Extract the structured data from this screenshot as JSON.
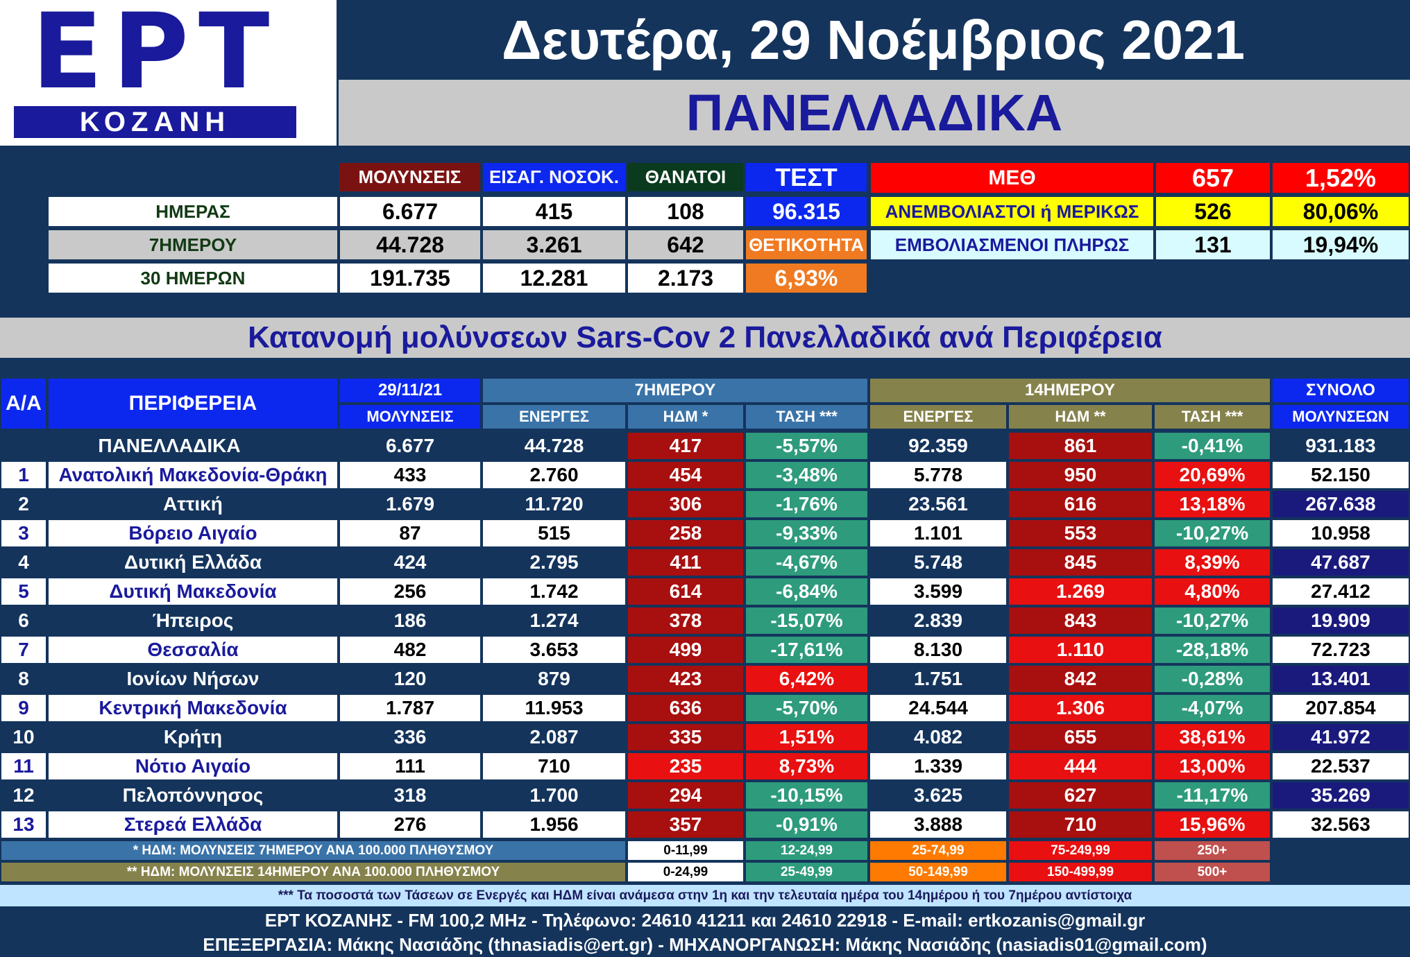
{
  "header": {
    "logo_main": "ΕΡΤ",
    "logo_sub": "ΚΟΖΑΝΗ",
    "date": "Δευτέρα, 29 Νοέμβριος 2021",
    "title": "ΠΑΝΕΛΛΑΔΙΚΑ"
  },
  "summary": {
    "col_infections": "ΜΟΛΥΝΣΕΙΣ",
    "col_hospital": "ΕΙΣΑΓ. ΝΟΣΟΚ.",
    "col_deaths": "ΘΑΝΑΤΟΙ",
    "col_tests": "ΤΕΣΤ",
    "rows": [
      {
        "label": "ΗΜΕΡΑΣ",
        "infections": "6.677",
        "hospital": "415",
        "deaths": "108"
      },
      {
        "label": "7ΗΜΕΡΟΥ",
        "infections": "44.728",
        "hospital": "3.261",
        "deaths": "642"
      },
      {
        "label": "30 ΗΜΕΡΩΝ",
        "infections": "191.735",
        "hospital": "12.281",
        "deaths": "2.173"
      }
    ],
    "tests_value": "96.315",
    "positivity_label": "ΘΕΤΙΚΟΤΗΤΑ",
    "positivity_value": "6,93%",
    "icu": {
      "label": "ΜΕΘ",
      "value": "657",
      "pct": "1,52%",
      "unvaccinated_label": "ΑΝΕΜΒΟΛΙΑΣΤΟΙ ή ΜΕΡΙΚΩΣ",
      "unvaccinated_value": "526",
      "unvaccinated_pct": "80,06%",
      "vaccinated_label": "ΕΜΒΟΛΙΑΣΜΕΝΟΙ ΠΛΗΡΩΣ",
      "vaccinated_value": "131",
      "vaccinated_pct": "19,94%"
    }
  },
  "section_title": "Κατανομή μολύνσεων Sars-Cov 2 Πανελλαδικά ανά Περιφέρεια",
  "table": {
    "h_aa": "Α/Α",
    "h_region": "ΠΕΡΙΦΕΡΕΙΑ",
    "h_date": "29/11/21",
    "h_7day": "7ΗΜΕΡΟΥ",
    "h_14day": "14ΗΜΕΡΟΥ",
    "h_total": "ΣΥΝΟΛΟ",
    "sh_infections": "ΜΟΛΥΝΣΕΙΣ",
    "sh_active7": "ΕΝΕΡΓΕΣ",
    "sh_idm7": "ΗΔΜ *",
    "sh_trend7": "ΤΑΣΗ ***",
    "sh_active14": "ΕΝΕΡΓΕΣ",
    "sh_idm14": "ΗΔΜ **",
    "sh_trend14": "ΤΑΣΗ ***",
    "sh_total": "ΜΟΛΥΝΣΕΩΝ",
    "national": {
      "name": "ΠΑΝΕΛΛΑΔΙΚΑ",
      "inf": "6.677",
      "act7": "44.728",
      "idm7": "417",
      "tr7": "-5,57%",
      "act14": "92.359",
      "idm14": "861",
      "tr14": "-0,41%",
      "total": "931.183"
    },
    "rows": [
      {
        "aa": "1",
        "name": "Ανατολική Μακεδονία-Θράκη",
        "inf": "433",
        "act7": "2.760",
        "idm7": "454",
        "tr7": "-3,48%",
        "act14": "5.778",
        "idm14": "950",
        "tr14": "20,69%",
        "total": "52.150"
      },
      {
        "aa": "2",
        "name": "Αττική",
        "inf": "1.679",
        "act7": "11.720",
        "idm7": "306",
        "tr7": "-1,76%",
        "act14": "23.561",
        "idm14": "616",
        "tr14": "13,18%",
        "total": "267.638"
      },
      {
        "aa": "3",
        "name": "Βόρειο Αιγαίο",
        "inf": "87",
        "act7": "515",
        "idm7": "258",
        "tr7": "-9,33%",
        "act14": "1.101",
        "idm14": "553",
        "tr14": "-10,27%",
        "total": "10.958"
      },
      {
        "aa": "4",
        "name": "Δυτική Ελλάδα",
        "inf": "424",
        "act7": "2.795",
        "idm7": "411",
        "tr7": "-4,67%",
        "act14": "5.748",
        "idm14": "845",
        "tr14": "8,39%",
        "total": "47.687"
      },
      {
        "aa": "5",
        "name": "Δυτική Μακεδονία",
        "inf": "256",
        "act7": "1.742",
        "idm7": "614",
        "tr7": "-6,84%",
        "act14": "3.599",
        "idm14": "1.269",
        "tr14": "4,80%",
        "total": "27.412"
      },
      {
        "aa": "6",
        "name": "Ήπειρος",
        "inf": "186",
        "act7": "1.274",
        "idm7": "378",
        "tr7": "-15,07%",
        "act14": "2.839",
        "idm14": "843",
        "tr14": "-10,27%",
        "total": "19.909"
      },
      {
        "aa": "7",
        "name": "Θεσσαλία",
        "inf": "482",
        "act7": "3.653",
        "idm7": "499",
        "tr7": "-17,61%",
        "act14": "8.130",
        "idm14": "1.110",
        "tr14": "-28,18%",
        "total": "72.723"
      },
      {
        "aa": "8",
        "name": "Ιονίων Νήσων",
        "inf": "120",
        "act7": "879",
        "idm7": "423",
        "tr7": "6,42%",
        "act14": "1.751",
        "idm14": "842",
        "tr14": "-0,28%",
        "total": "13.401"
      },
      {
        "aa": "9",
        "name": "Κεντρική Μακεδονία",
        "inf": "1.787",
        "act7": "11.953",
        "idm7": "636",
        "tr7": "-5,70%",
        "act14": "24.544",
        "idm14": "1.306",
        "tr14": "-4,07%",
        "total": "207.854"
      },
      {
        "aa": "10",
        "name": "Κρήτη",
        "inf": "336",
        "act7": "2.087",
        "idm7": "335",
        "tr7": "1,51%",
        "act14": "4.082",
        "idm14": "655",
        "tr14": "38,61%",
        "total": "41.972"
      },
      {
        "aa": "11",
        "name": "Νότιο Αιγαίο",
        "inf": "111",
        "act7": "710",
        "idm7": "235",
        "tr7": "8,73%",
        "act14": "1.339",
        "idm14": "444",
        "tr14": "13,00%",
        "total": "22.537"
      },
      {
        "aa": "12",
        "name": "Πελοπόννησος",
        "inf": "318",
        "act7": "1.700",
        "idm7": "294",
        "tr7": "-10,15%",
        "act14": "3.625",
        "idm14": "627",
        "tr14": "-11,17%",
        "total": "35.269"
      },
      {
        "aa": "13",
        "name": "Στερεά Ελλάδα",
        "inf": "276",
        "act7": "1.956",
        "idm7": "357",
        "tr7": "-0,91%",
        "act14": "3.888",
        "idm14": "710",
        "tr14": "15,96%",
        "total": "32.563"
      }
    ]
  },
  "legend": {
    "note7": "* ΗΔΜ: ΜΟΛΥΝΣΕΙΣ 7ΗΜΕΡΟΥ ΑΝΑ 100.000 ΠΛΗΘΥΣΜΟΥ",
    "note14": "** ΗΔΜ: ΜΟΛΥΝΣΕΙΣ 14ΗΜΕΡΟΥ ΑΝΑ 100.000 ΠΛΗΘΥΣΜΟΥ",
    "ranges7": [
      "0-11,99",
      "12-24,99",
      "25-74,99",
      "75-249,99",
      "250+"
    ],
    "ranges14": [
      "0-24,99",
      "25-49,99",
      "50-149,99",
      "150-499,99",
      "500+"
    ],
    "colors": [
      "#ffffff",
      "#2e9b7c",
      "#ff7a00",
      "#e81010",
      "#c0504d"
    ]
  },
  "footer": {
    "note": "*** Τα ποσοστά των Τάσεων σε Ενεργές και ΗΔΜ είναι ανάμεσα στην 1η και την τελευταία ημέρα του 14ημέρου ή του 7ημέρου αντίστοιχα",
    "contact": "ΕΡΤ ΚΟΖΑΝΗΣ - FM 100,2 MHz - Τηλέφωνο:  24610 41211 και 24610 22918 - E-mail: ertkozanis@gmail.gr",
    "credits": "ΕΠΕΞΕΡΓΑΣΙΑ: Μάκης Νασιάδης (thnasiadis@ert.gr) - ΜΗΧΑΝΟΡΓΑΝΩΣΗ: Μάκης Νασιάδης (nasiadis01@gmail.com)"
  }
}
